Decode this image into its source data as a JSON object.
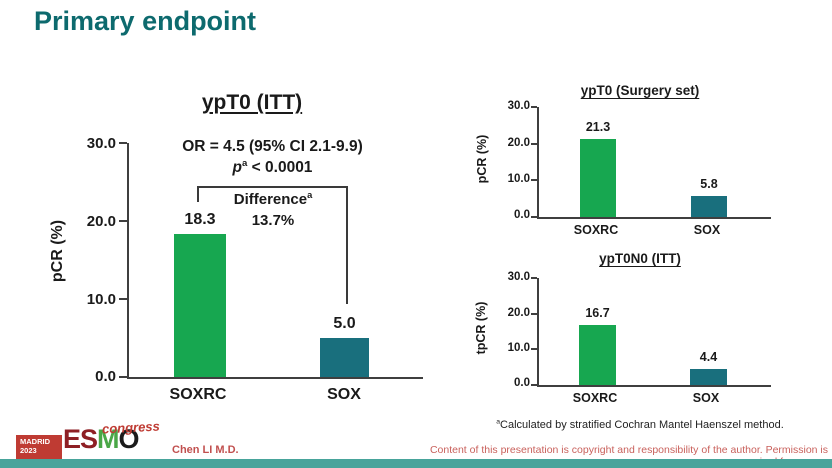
{
  "slide": {
    "title": "Primary endpoint",
    "footnote_sup": "a",
    "footnote_text": "Calculated by stratified Cochran Mantel Haenszel method.",
    "author": "Chen LI M.D.",
    "copyright": "Content of this presentation is copyright and responsibility of the author. Permission is required for re-use.",
    "logo": {
      "city": "MADRID",
      "year": "2023",
      "org_letters": [
        "E",
        "S",
        "M",
        "O"
      ],
      "event": "congress"
    }
  },
  "colors": {
    "title_teal": "#0d6a6e",
    "bar_green": "#17a750",
    "bar_teal": "#196f7d",
    "axis": "#3f3f3f",
    "author_red": "#c1504f",
    "copyright_red": "#c9615c",
    "footer_bar_teal": "#48a49b",
    "logo_red": "#bf3b33",
    "logo_dark_red": "#8e1f24",
    "logo_green": "#4aa747"
  },
  "chart_data": [
    {
      "type": "bar",
      "title": "ypT0 (ITT)",
      "ylabel": "pCR (%)",
      "ylim": [
        0,
        30
      ],
      "yticks": [
        "30.0",
        "20.0",
        "10.0",
        "0.0"
      ],
      "grid": "off",
      "categories": [
        "SOXRC",
        "SOX"
      ],
      "values": [
        18.3,
        5.0
      ],
      "value_labels": [
        "18.3",
        "5.0"
      ],
      "annotations": {
        "or_text": "OR = 4.5 (95% CI 2.1-9.9)",
        "p_italic": "p",
        "p_sup": "a",
        "p_rest": " < 0.0001",
        "diff_label": "Difference",
        "diff_sup": "a",
        "diff_value": "13.7%"
      }
    },
    {
      "type": "bar",
      "title": "ypT0 (Surgery set)",
      "ylabel": "pCR (%)",
      "ylim": [
        0,
        30
      ],
      "yticks": [
        "30.0",
        "20.0",
        "10.0",
        "0.0"
      ],
      "grid": "off",
      "categories": [
        "SOXRC",
        "SOX"
      ],
      "values": [
        21.3,
        5.8
      ],
      "value_labels": [
        "21.3",
        "5.8"
      ]
    },
    {
      "type": "bar",
      "title": "ypT0N0 (ITT)",
      "ylabel": "tpCR (%)",
      "ylim": [
        0,
        30
      ],
      "yticks": [
        "30.0",
        "20.0",
        "10.0",
        "0.0"
      ],
      "grid": "off",
      "categories": [
        "SOXRC",
        "SOX"
      ],
      "values": [
        16.7,
        4.4
      ],
      "value_labels": [
        "16.7",
        "4.4"
      ]
    }
  ]
}
